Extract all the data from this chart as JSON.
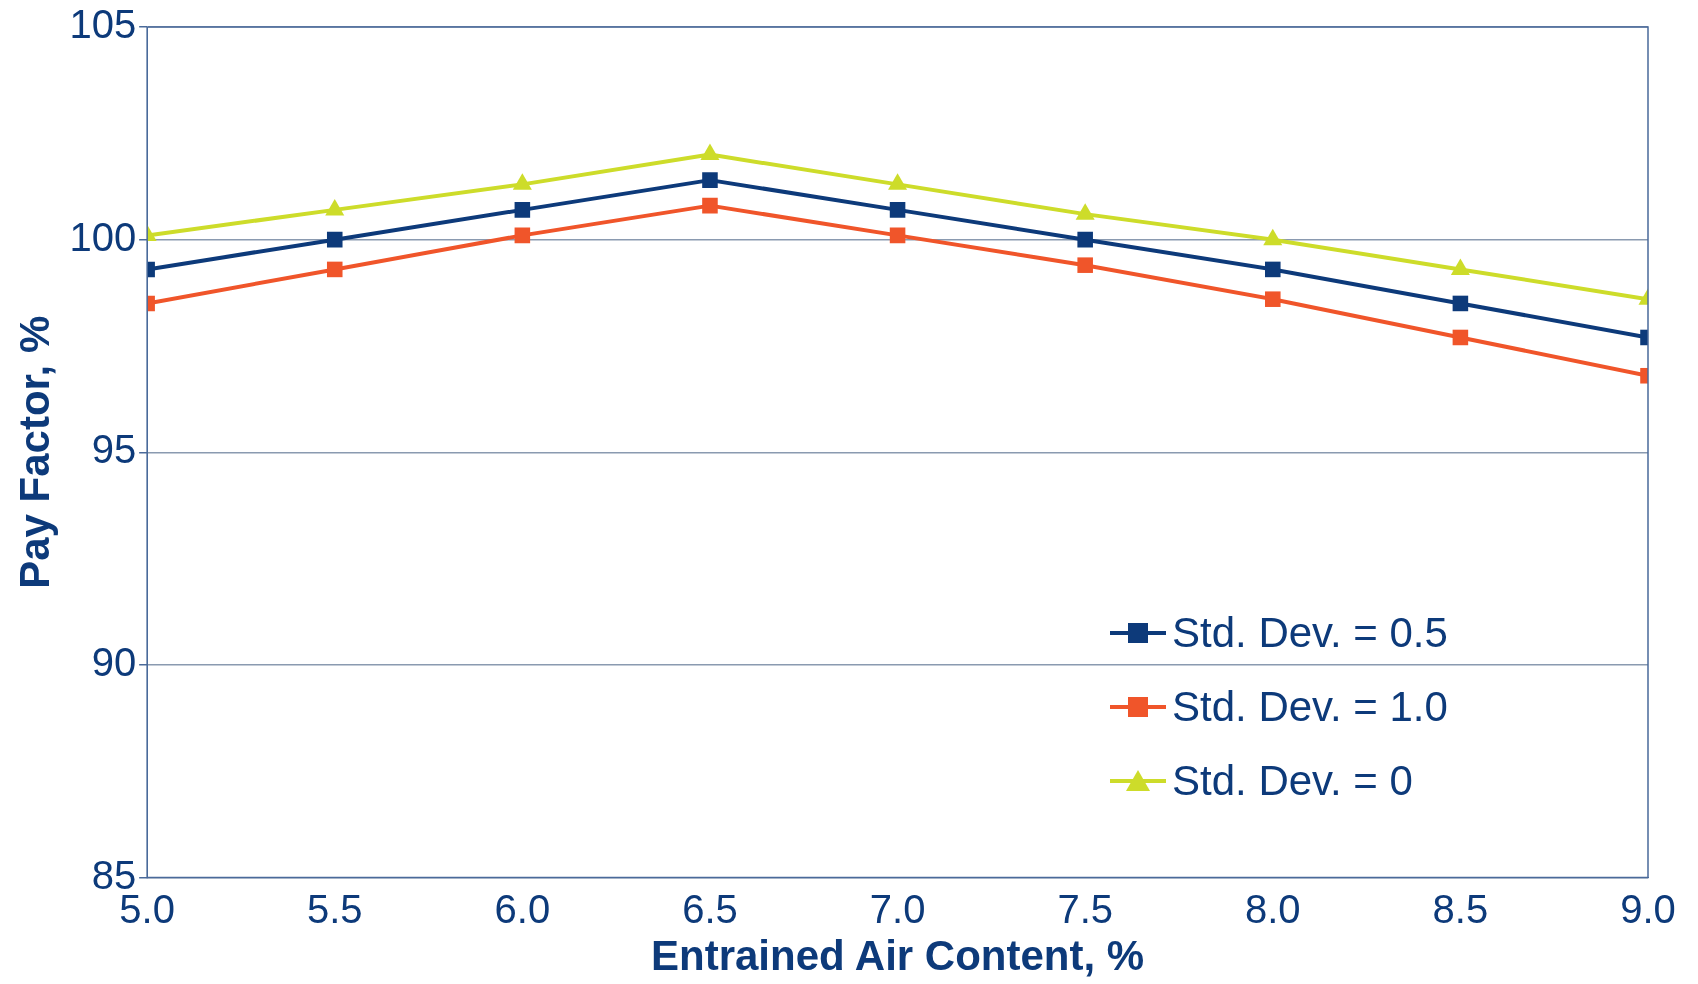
{
  "chart_data": {
    "type": "line",
    "xlabel": "Entrained Air Content, %",
    "ylabel": "Pay Factor, %",
    "x": [
      5.0,
      5.5,
      6.0,
      6.5,
      7.0,
      7.5,
      8.0,
      8.5,
      9.0
    ],
    "xlim": [
      5,
      9
    ],
    "xticks": [
      {
        "value": 5,
        "label": "5.0"
      },
      {
        "value": 5.5,
        "label": "5.5"
      },
      {
        "value": 6,
        "label": "6.0"
      },
      {
        "value": 6.5,
        "label": "6.5"
      },
      {
        "value": 7,
        "label": "7.0"
      },
      {
        "value": 7.5,
        "label": "7.5"
      },
      {
        "value": 8,
        "label": "8.0"
      },
      {
        "value": 8.5,
        "label": "8.5"
      },
      {
        "value": 9,
        "label": "9.0"
      }
    ],
    "ylim": [
      85,
      105
    ],
    "yticks": [
      85,
      90,
      95,
      100,
      105
    ],
    "grid": "y",
    "legend": "bottom right",
    "line_style": "solid",
    "series": [
      {
        "name": "Std. Dev. = 0.5",
        "color": "#0d3a7a",
        "marker": "square",
        "values": [
          99.3,
          100.0,
          100.7,
          101.4,
          100.7,
          100.0,
          99.3,
          98.5,
          97.7
        ]
      },
      {
        "name": "Std. Dev. = 1.0",
        "color": "#f0552a",
        "marker": "square",
        "values": [
          98.5,
          99.3,
          100.1,
          100.8,
          100.1,
          99.4,
          98.6,
          97.7,
          96.8
        ]
      },
      {
        "name": "Std. Dev. = 0",
        "color": "#cddc2a",
        "marker": "triangle",
        "values": [
          100.1,
          100.7,
          101.3,
          102.0,
          101.3,
          100.6,
          100.0,
          99.3,
          98.6
        ]
      }
    ]
  }
}
